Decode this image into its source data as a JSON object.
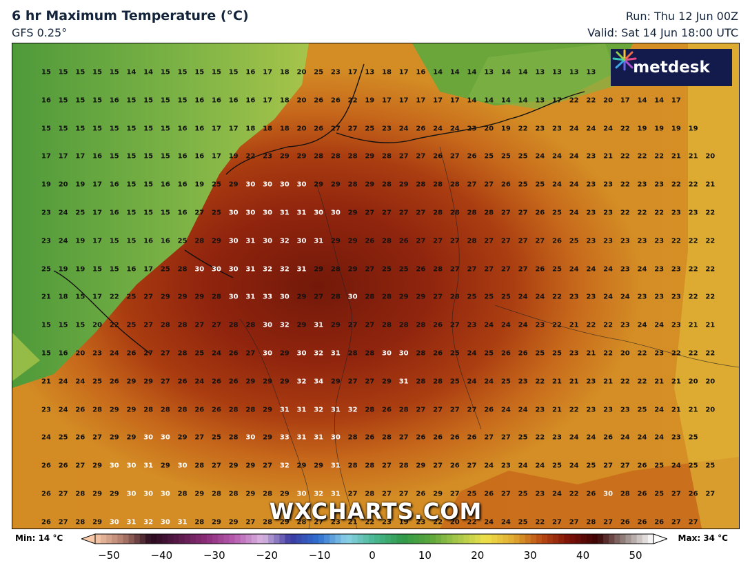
{
  "header": {
    "title": "6 hr Maximum Temperature (°C)",
    "model": "GFS 0.25°",
    "run": "Run: Thu 12 Jun 00Z",
    "valid": "Valid: Sat 14 Jun 18:00 UTC"
  },
  "logo": {
    "text": "metdesk"
  },
  "watermark": "WXCHARTS.COM",
  "legend": {
    "min_label": "Min: 14 °C",
    "max_label": "Max: 34 °C",
    "ticks": [
      "−50",
      "−40",
      "−30",
      "−20",
      "−10",
      "0",
      "10",
      "20",
      "30",
      "40",
      "50"
    ],
    "range": [
      -50,
      50
    ]
  },
  "grid_values": [
    [
      15,
      15,
      15,
      15,
      15,
      14,
      14,
      15,
      15,
      15,
      15,
      15,
      16,
      17,
      18,
      20,
      25,
      23,
      17,
      13,
      18,
      17,
      16,
      14,
      14,
      14,
      13,
      14,
      14,
      13,
      13,
      13,
      13
    ],
    [
      16,
      15,
      15,
      15,
      16,
      15,
      15,
      15,
      15,
      16,
      16,
      16,
      16,
      17,
      18,
      20,
      26,
      26,
      22,
      19,
      17,
      17,
      17,
      17,
      17,
      14,
      14,
      14,
      14,
      13,
      17,
      22,
      22,
      20,
      17,
      14,
      14,
      17
    ],
    [
      15,
      15,
      15,
      15,
      15,
      15,
      15,
      15,
      16,
      16,
      17,
      17,
      18,
      18,
      18,
      20,
      26,
      27,
      27,
      25,
      23,
      24,
      26,
      24,
      24,
      23,
      20,
      19,
      22,
      23,
      23,
      24,
      24,
      24,
      22,
      19,
      19,
      19,
      19
    ],
    [
      17,
      17,
      17,
      16,
      15,
      15,
      15,
      15,
      16,
      16,
      17,
      19,
      22,
      23,
      29,
      29,
      28,
      28,
      28,
      29,
      28,
      27,
      27,
      26,
      27,
      26,
      25,
      25,
      25,
      24,
      24,
      24,
      23,
      21,
      22,
      22,
      22,
      21,
      21,
      20
    ],
    [
      19,
      20,
      19,
      17,
      16,
      15,
      15,
      16,
      16,
      19,
      25,
      29,
      30,
      30,
      30,
      30,
      29,
      29,
      28,
      29,
      28,
      29,
      28,
      28,
      28,
      27,
      27,
      26,
      25,
      25,
      24,
      24,
      23,
      23,
      22,
      23,
      23,
      22,
      22,
      21
    ],
    [
      23,
      24,
      25,
      17,
      16,
      15,
      15,
      15,
      16,
      27,
      25,
      30,
      30,
      30,
      31,
      31,
      30,
      30,
      29,
      27,
      27,
      27,
      27,
      28,
      28,
      28,
      28,
      27,
      27,
      26,
      25,
      24,
      23,
      23,
      22,
      22,
      22,
      23,
      23,
      22
    ],
    [
      23,
      24,
      19,
      17,
      15,
      15,
      16,
      16,
      25,
      28,
      29,
      30,
      31,
      30,
      32,
      30,
      31,
      29,
      29,
      26,
      28,
      26,
      27,
      27,
      27,
      28,
      27,
      27,
      27,
      27,
      26,
      25,
      23,
      23,
      23,
      23,
      23,
      22,
      22,
      22
    ],
    [
      25,
      19,
      19,
      15,
      15,
      16,
      17,
      25,
      28,
      30,
      30,
      30,
      31,
      32,
      32,
      31,
      29,
      28,
      29,
      27,
      25,
      25,
      26,
      28,
      27,
      27,
      27,
      27,
      27,
      26,
      25,
      24,
      24,
      24,
      23,
      24,
      23,
      23,
      22,
      22
    ],
    [
      21,
      18,
      15,
      17,
      22,
      25,
      27,
      29,
      29,
      29,
      28,
      30,
      31,
      33,
      30,
      29,
      27,
      28,
      30,
      28,
      28,
      29,
      29,
      27,
      28,
      25,
      25,
      25,
      24,
      24,
      22,
      23,
      23,
      24,
      24,
      23,
      23,
      23,
      22,
      22
    ],
    [
      15,
      15,
      15,
      20,
      22,
      25,
      27,
      28,
      28,
      27,
      27,
      28,
      28,
      30,
      32,
      29,
      31,
      29,
      27,
      27,
      28,
      28,
      28,
      26,
      27,
      23,
      24,
      24,
      24,
      23,
      22,
      21,
      22,
      22,
      23,
      24,
      24,
      23,
      21,
      21
    ],
    [
      15,
      16,
      20,
      23,
      24,
      26,
      27,
      27,
      28,
      25,
      24,
      26,
      27,
      30,
      29,
      30,
      32,
      31,
      28,
      28,
      30,
      30,
      28,
      26,
      25,
      24,
      25,
      26,
      26,
      25,
      25,
      23,
      21,
      22,
      20,
      22,
      23,
      22,
      22,
      22
    ],
    [
      21,
      24,
      24,
      25,
      26,
      29,
      29,
      27,
      26,
      24,
      26,
      26,
      29,
      29,
      29,
      32,
      34,
      29,
      27,
      27,
      29,
      31,
      28,
      28,
      25,
      24,
      24,
      25,
      23,
      22,
      21,
      21,
      23,
      21,
      22,
      22,
      21,
      21,
      20,
      20
    ],
    [
      23,
      24,
      26,
      28,
      29,
      29,
      28,
      28,
      28,
      26,
      26,
      28,
      28,
      29,
      31,
      31,
      32,
      31,
      32,
      28,
      26,
      28,
      27,
      27,
      27,
      27,
      26,
      24,
      24,
      23,
      21,
      22,
      23,
      23,
      23,
      25,
      24,
      21,
      21,
      20
    ],
    [
      24,
      25,
      26,
      27,
      29,
      29,
      30,
      30,
      29,
      27,
      25,
      28,
      30,
      29,
      33,
      31,
      31,
      30,
      28,
      26,
      28,
      27,
      26,
      26,
      26,
      26,
      27,
      27,
      25,
      22,
      23,
      24,
      24,
      26,
      24,
      24,
      24,
      23,
      25
    ],
    [
      26,
      26,
      27,
      29,
      30,
      30,
      31,
      29,
      30,
      28,
      27,
      29,
      29,
      27,
      32,
      29,
      29,
      31,
      28,
      28,
      27,
      28,
      29,
      27,
      26,
      27,
      24,
      23,
      24,
      24,
      25,
      24,
      25,
      27,
      27,
      26,
      25,
      24,
      25,
      25
    ],
    [
      26,
      27,
      28,
      29,
      29,
      30,
      30,
      30,
      28,
      29,
      28,
      28,
      29,
      28,
      29,
      30,
      32,
      31,
      27,
      28,
      27,
      27,
      26,
      29,
      27,
      25,
      26,
      27,
      25,
      23,
      24,
      22,
      26,
      30,
      28,
      26,
      25,
      27,
      26,
      27
    ],
    [
      26,
      27,
      28,
      29,
      30,
      31,
      32,
      30,
      31,
      28,
      29,
      29,
      27,
      28,
      29,
      28,
      27,
      23,
      21,
      22,
      23,
      19,
      23,
      22,
      20,
      22,
      24,
      24,
      25,
      22,
      27,
      27,
      28,
      27,
      26,
      26,
      26,
      27,
      27
    ]
  ]
}
